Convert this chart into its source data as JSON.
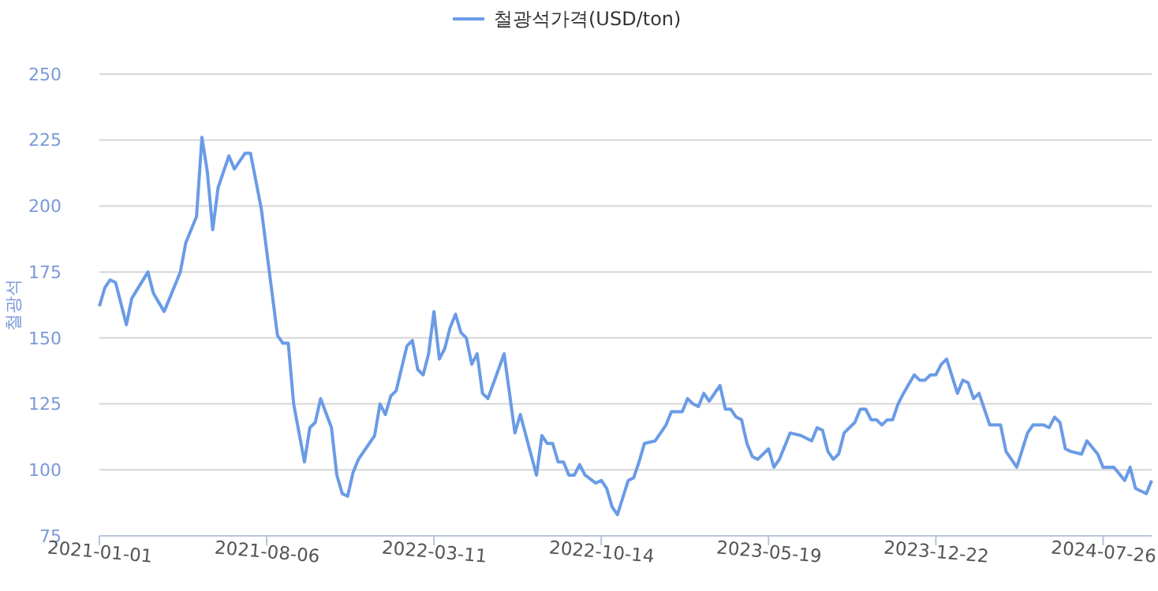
{
  "chart_data": {
    "type": "line",
    "ylabel": "철광석",
    "legend": "top",
    "grid": "y",
    "marker": "none",
    "line_style": "solid",
    "ylim": [
      75,
      250
    ],
    "yticks": [
      75,
      100,
      125,
      150,
      175,
      200,
      225,
      250
    ],
    "xlim": [
      "2021-01-01",
      "2024-09-27"
    ],
    "xticks": [
      {
        "value": "2021-01-01",
        "label": "2021-01-01"
      },
      {
        "value": "2021-08-06",
        "label": "2021-08-06"
      },
      {
        "value": "2022-03-11",
        "label": "2022-03-11"
      },
      {
        "value": "2022-10-14",
        "label": "2022-10-14"
      },
      {
        "value": "2023-05-19",
        "label": "2023-05-19"
      },
      {
        "value": "2023-12-22",
        "label": "2023-12-22"
      },
      {
        "value": "2024-07-26",
        "label": "2024-07-26"
      }
    ],
    "x": [
      "2021-01-01",
      "2021-01-08",
      "2021-01-15",
      "2021-01-22",
      "2021-02-05",
      "2021-02-12",
      "2021-03-05",
      "2021-03-12",
      "2021-03-26",
      "2021-04-16",
      "2021-04-23",
      "2021-05-07",
      "2021-05-14",
      "2021-05-21",
      "2021-05-28",
      "2021-06-04",
      "2021-06-18",
      "2021-06-25",
      "2021-07-09",
      "2021-07-16",
      "2021-07-30",
      "2021-08-20",
      "2021-08-27",
      "2021-09-03",
      "2021-09-10",
      "2021-09-24",
      "2021-10-01",
      "2021-10-08",
      "2021-10-15",
      "2021-10-29",
      "2021-11-05",
      "2021-11-12",
      "2021-11-19",
      "2021-11-26",
      "2021-12-03",
      "2021-12-24",
      "2021-12-31",
      "2022-01-07",
      "2022-01-14",
      "2022-01-21",
      "2022-02-04",
      "2022-02-11",
      "2022-02-18",
      "2022-02-25",
      "2022-03-04",
      "2022-03-11",
      "2022-03-18",
      "2022-03-25",
      "2022-04-01",
      "2022-04-08",
      "2022-04-15",
      "2022-04-22",
      "2022-04-29",
      "2022-05-06",
      "2022-05-13",
      "2022-05-20",
      "2022-06-10",
      "2022-06-24",
      "2022-07-01",
      "2022-07-22",
      "2022-07-29",
      "2022-08-05",
      "2022-08-12",
      "2022-08-19",
      "2022-08-26",
      "2022-09-02",
      "2022-09-09",
      "2022-09-16",
      "2022-09-23",
      "2022-10-07",
      "2022-10-14",
      "2022-10-21",
      "2022-10-28",
      "2022-11-04",
      "2022-11-18",
      "2022-11-25",
      "2022-12-02",
      "2022-12-09",
      "2022-12-23",
      "2023-01-06",
      "2023-01-13",
      "2023-01-27",
      "2023-02-03",
      "2023-02-10",
      "2023-02-17",
      "2023-02-24",
      "2023-03-03",
      "2023-03-17",
      "2023-03-24",
      "2023-03-31",
      "2023-04-07",
      "2023-04-14",
      "2023-04-21",
      "2023-04-28",
      "2023-05-05",
      "2023-05-19",
      "2023-05-26",
      "2023-06-02",
      "2023-06-16",
      "2023-06-30",
      "2023-07-14",
      "2023-07-21",
      "2023-07-28",
      "2023-08-04",
      "2023-08-11",
      "2023-08-18",
      "2023-08-25",
      "2023-09-08",
      "2023-09-15",
      "2023-09-22",
      "2023-09-29",
      "2023-10-06",
      "2023-10-13",
      "2023-10-20",
      "2023-10-27",
      "2023-11-03",
      "2023-11-10",
      "2023-11-24",
      "2023-12-01",
      "2023-12-08",
      "2023-12-15",
      "2023-12-22",
      "2023-12-29",
      "2024-01-05",
      "2024-01-19",
      "2024-01-26",
      "2024-02-02",
      "2024-02-09",
      "2024-02-16",
      "2024-03-01",
      "2024-03-15",
      "2024-03-22",
      "2024-04-05",
      "2024-04-19",
      "2024-04-26",
      "2024-05-10",
      "2024-05-17",
      "2024-05-24",
      "2024-05-31",
      "2024-06-07",
      "2024-06-14",
      "2024-06-28",
      "2024-07-05",
      "2024-07-19",
      "2024-07-26",
      "2024-08-09",
      "2024-08-23",
      "2024-08-30",
      "2024-09-06",
      "2024-09-20",
      "2024-09-27"
    ],
    "series": [
      {
        "name": "철광석가격(USD/ton)",
        "color": "#6a9be6",
        "values": [
          162,
          169,
          172,
          171,
          155,
          165,
          175,
          167,
          160,
          175,
          186,
          196,
          226,
          213,
          191,
          207,
          219,
          214,
          220,
          220,
          199,
          151,
          148,
          148,
          125,
          103,
          116,
          118,
          127,
          116,
          98,
          91,
          90,
          99,
          104,
          113,
          125,
          121,
          128,
          130,
          147,
          149,
          138,
          136,
          144,
          160,
          142,
          146,
          154,
          159,
          152,
          150,
          140,
          144,
          129,
          127,
          144,
          114,
          121,
          98,
          113,
          110,
          110,
          103,
          103,
          98,
          98,
          102,
          98,
          95,
          96,
          93,
          86,
          83,
          96,
          97,
          103,
          110,
          111,
          117,
          122,
          122,
          127,
          125,
          124,
          129,
          126,
          132,
          123,
          123,
          120,
          119,
          110,
          105,
          104,
          108,
          101,
          104,
          114,
          113,
          111,
          116,
          115,
          107,
          104,
          106,
          114,
          118,
          123,
          123,
          119,
          119,
          117,
          119,
          119,
          125,
          129,
          136,
          134,
          134,
          136,
          136,
          140,
          142,
          129,
          134,
          133,
          127,
          129,
          117,
          117,
          107,
          101,
          114,
          117,
          117,
          116,
          120,
          118,
          108,
          107,
          106,
          111,
          106,
          101,
          101,
          96,
          101,
          93,
          91,
          96
        ]
      }
    ]
  }
}
